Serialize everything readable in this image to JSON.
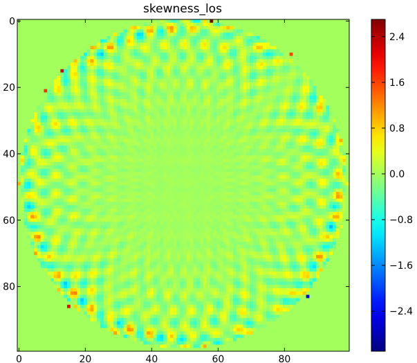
{
  "chart_data": {
    "type": "heatmap",
    "title": "skewness_los",
    "xlabel": "",
    "ylabel": "",
    "grid_size": 100,
    "x_ticks": [
      "0",
      "20",
      "40",
      "60",
      "80"
    ],
    "y_ticks": [
      "0",
      "20",
      "40",
      "60",
      "80"
    ],
    "xlim": [
      0,
      100
    ],
    "ylim": [
      100,
      0
    ],
    "colorbar": {
      "colormap": "jet",
      "range": [
        -3.1,
        2.7
      ],
      "ticks": [
        "2.4",
        "1.6",
        "0.8",
        "0.0",
        "−0.8",
        "−1.6",
        "−2.4"
      ],
      "tick_values": [
        2.4,
        1.6,
        0.8,
        0.0,
        -0.8,
        -1.6,
        -2.4
      ]
    },
    "field": {
      "background_value": 0.0,
      "disk_center": [
        50,
        49.5
      ],
      "disk_radius": 49.5,
      "pattern": "checkerboard interference ring, amplitude increasing toward edge",
      "value_range_inner": [
        -0.4,
        0.5
      ],
      "value_range_edge": [
        -1.5,
        1.9
      ],
      "extreme_points": [
        {
          "x": 58,
          "y": 0,
          "value": 2.7
        },
        {
          "x": 13,
          "y": 15,
          "value": 2.2
        },
        {
          "x": 15,
          "y": 86,
          "value": 2.0
        },
        {
          "x": 87,
          "y": 83,
          "value": -2.6
        },
        {
          "x": 8,
          "y": 21,
          "value": 1.7
        },
        {
          "x": 82,
          "y": 10,
          "value": 1.6
        }
      ]
    }
  }
}
